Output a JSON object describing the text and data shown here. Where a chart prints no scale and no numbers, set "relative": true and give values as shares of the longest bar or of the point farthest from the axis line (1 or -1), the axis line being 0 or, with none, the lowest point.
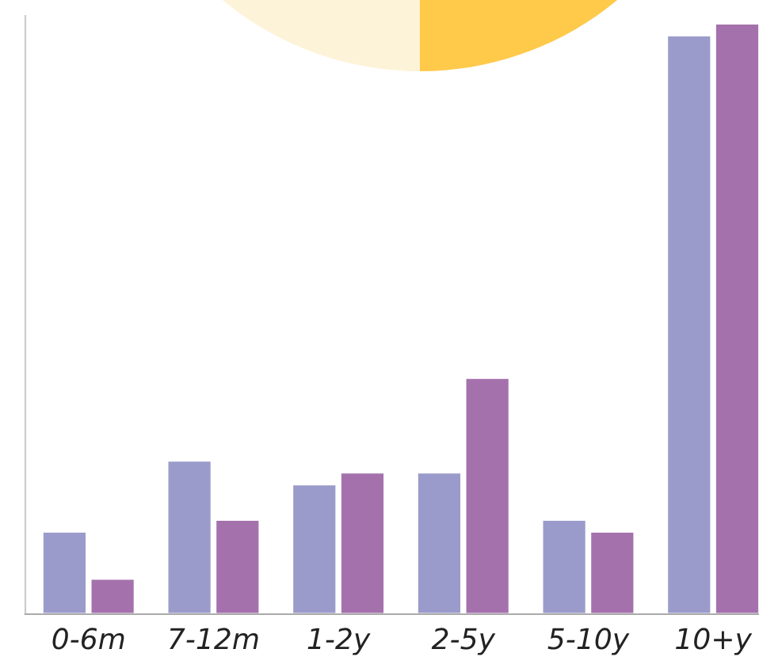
{
  "chart_data": {
    "type": "bar",
    "relative": true,
    "categories": [
      "0-6m",
      "7-12m",
      "1-2y",
      "2-5y",
      "5-10y",
      "10+y"
    ],
    "series": [
      {
        "color": "#9b9bcb",
        "values": [
          0.14,
          0.26,
          0.22,
          0.24,
          0.16,
          0.98
        ]
      },
      {
        "color": "#a571ad",
        "values": [
          0.06,
          0.16,
          0.24,
          0.4,
          0.14,
          1.0
        ]
      }
    ],
    "grid": false
  }
}
